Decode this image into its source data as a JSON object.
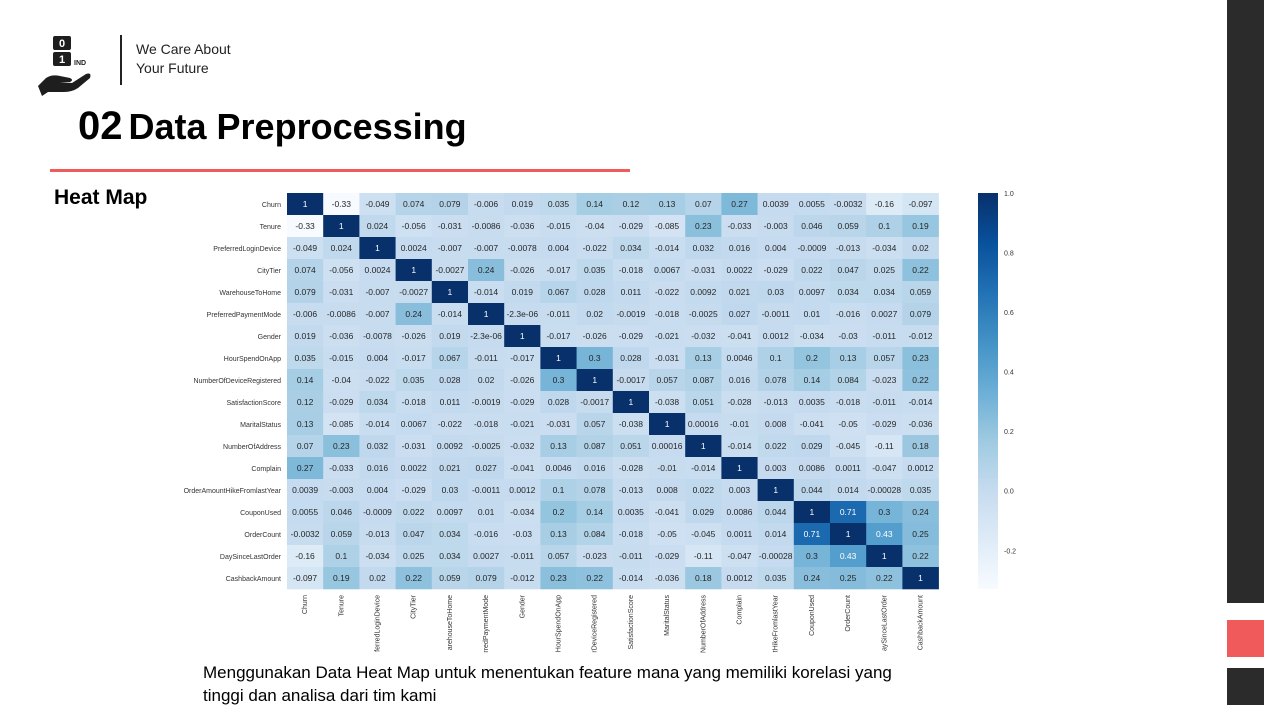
{
  "header": {
    "logo_text": "01 IND",
    "tagline_line1": "We Care About",
    "tagline_line2": "Your Future",
    "title_number": "02",
    "title_text": "Data Preprocessing"
  },
  "section_label": "Heat Map",
  "caption": {
    "line1": "Menggunakan Data Heat Map untuk menentukan feature mana yang memiliki korelasi yang",
    "line2": "tinggi dan analisa dari tim kami"
  },
  "colors": {
    "accent_red": "#f05a5a",
    "sidebar_dark": "#2b2b2b",
    "cmap_low": "#f7fbff",
    "cmap_high": "#08306b"
  },
  "chart_data": {
    "type": "heatmap",
    "title": "",
    "colormap": "Blues",
    "range": [
      -0.33,
      1.0
    ],
    "colorbar_ticks": [
      "1.0",
      "0.8",
      "0.6",
      "0.4",
      "0.2",
      "0.0",
      "-0.2"
    ],
    "labels": [
      "Churn",
      "Tenure",
      "PreferredLoginDevice",
      "CityTier",
      "WarehouseToHome",
      "PreferredPaymentMode",
      "Gender",
      "HourSpendOnApp",
      "NumberOfDeviceRegistered",
      "SatisfactionScore",
      "MaritalStatus",
      "NumberOfAddress",
      "Complain",
      "OrderAmountHikeFromlastYear",
      "CouponUsed",
      "OrderCount",
      "DaySinceLastOrder",
      "CashbackAmount"
    ],
    "x_tick_labels": [
      "Churn",
      "Tenure",
      "ferredLoginDevice",
      "CityTier",
      "arehouseToHome",
      "rredPaymentMode",
      "Gender",
      "HourSpendOnApp",
      "rDeviceRegistered",
      "SatisfactionScore",
      "MaritalStatus",
      "NumberOfAddress",
      "Complain",
      "tHikeFromlastYear",
      "CouponUsed",
      "OrderCount",
      "aySinceLastOrder",
      "CashbackAmount"
    ],
    "values": [
      [
        1,
        -0.33,
        -0.049,
        0.074,
        0.079,
        -0.006,
        0.019,
        0.035,
        0.14,
        0.12,
        0.13,
        0.07,
        0.27,
        0.0039,
        0.0055,
        -0.0032,
        -0.16,
        -0.097
      ],
      [
        -0.33,
        1,
        0.024,
        -0.056,
        -0.031,
        -0.0086,
        -0.036,
        -0.015,
        -0.04,
        -0.029,
        -0.085,
        0.23,
        -0.033,
        -0.003,
        0.046,
        0.059,
        0.1,
        0.19
      ],
      [
        -0.049,
        0.024,
        1,
        0.0024,
        -0.007,
        -0.007,
        -0.0078,
        0.004,
        -0.022,
        0.034,
        -0.014,
        0.032,
        0.016,
        0.004,
        -0.0009,
        -0.013,
        -0.034,
        0.02
      ],
      [
        0.074,
        -0.056,
        0.0024,
        1,
        -0.0027,
        0.24,
        -0.026,
        -0.017,
        0.035,
        -0.018,
        0.0067,
        -0.031,
        0.0022,
        -0.029,
        0.022,
        0.047,
        0.025,
        0.22
      ],
      [
        0.079,
        -0.031,
        -0.007,
        -0.0027,
        1,
        -0.014,
        0.019,
        0.067,
        0.028,
        0.011,
        -0.022,
        0.0092,
        0.021,
        0.03,
        0.0097,
        0.034,
        0.034,
        0.059
      ],
      [
        -0.006,
        -0.0086,
        -0.007,
        0.24,
        -0.014,
        1,
        -2.3e-06,
        -0.011,
        0.02,
        -0.0019,
        -0.018,
        -0.0025,
        0.027,
        -0.0011,
        0.01,
        -0.016,
        0.0027,
        0.079
      ],
      [
        0.019,
        -0.036,
        -0.0078,
        -0.026,
        0.019,
        -2.3e-06,
        1,
        -0.017,
        -0.026,
        -0.029,
        -0.021,
        -0.032,
        -0.041,
        0.0012,
        -0.034,
        -0.03,
        -0.011,
        -0.012
      ],
      [
        0.035,
        -0.015,
        0.004,
        -0.017,
        0.067,
        -0.011,
        -0.017,
        1,
        0.3,
        0.028,
        -0.031,
        0.13,
        0.0046,
        0.1,
        0.2,
        0.13,
        0.057,
        0.23
      ],
      [
        0.14,
        -0.04,
        -0.022,
        0.035,
        0.028,
        0.02,
        -0.026,
        0.3,
        1,
        -0.0017,
        0.057,
        0.087,
        0.016,
        0.078,
        0.14,
        0.084,
        -0.023,
        0.22
      ],
      [
        0.12,
        -0.029,
        0.034,
        -0.018,
        0.011,
        -0.0019,
        -0.029,
        0.028,
        -0.0017,
        1,
        -0.038,
        0.051,
        -0.028,
        -0.013,
        0.0035,
        -0.018,
        -0.011,
        -0.014
      ],
      [
        0.13,
        -0.085,
        -0.014,
        0.0067,
        -0.022,
        -0.018,
        -0.021,
        -0.031,
        0.057,
        -0.038,
        1,
        0.00016,
        -0.01,
        0.008,
        -0.041,
        -0.05,
        -0.029,
        -0.036
      ],
      [
        0.07,
        0.23,
        0.032,
        -0.031,
        0.0092,
        -0.0025,
        -0.032,
        0.13,
        0.087,
        0.051,
        0.00016,
        1,
        -0.014,
        0.022,
        0.029,
        -0.045,
        -0.11,
        0.18
      ],
      [
        0.27,
        -0.033,
        0.016,
        0.0022,
        0.021,
        0.027,
        -0.041,
        0.0046,
        0.016,
        -0.028,
        -0.01,
        -0.014,
        1,
        0.003,
        0.0086,
        0.0011,
        -0.047,
        0.0012
      ],
      [
        0.0039,
        -0.003,
        0.004,
        -0.029,
        0.03,
        -0.0011,
        0.0012,
        0.1,
        0.078,
        -0.013,
        0.008,
        0.022,
        0.003,
        1,
        0.044,
        0.014,
        -0.00028,
        0.035
      ],
      [
        0.0055,
        0.046,
        -0.0009,
        0.022,
        0.0097,
        0.01,
        -0.034,
        0.2,
        0.14,
        0.0035,
        -0.041,
        0.029,
        0.0086,
        0.044,
        1,
        0.71,
        0.3,
        0.24
      ],
      [
        -0.0032,
        0.059,
        -0.013,
        0.047,
        0.034,
        -0.016,
        -0.03,
        0.13,
        0.084,
        -0.018,
        -0.05,
        -0.045,
        0.0011,
        0.014,
        0.71,
        1,
        0.43,
        0.25
      ],
      [
        -0.16,
        0.1,
        -0.034,
        0.025,
        0.034,
        0.0027,
        -0.011,
        0.057,
        -0.023,
        -0.011,
        -0.029,
        -0.11,
        -0.047,
        -0.00028,
        0.3,
        0.43,
        1,
        0.22
      ],
      [
        -0.097,
        0.19,
        0.02,
        0.22,
        0.059,
        0.079,
        -0.012,
        0.23,
        0.22,
        -0.014,
        -0.036,
        0.18,
        0.0012,
        0.035,
        0.24,
        0.25,
        0.22,
        1
      ]
    ],
    "cell_labels": [
      [
        "1",
        "-0.33",
        "-0.049",
        "0.074",
        "0.079",
        "-0.006",
        "0.019",
        "0.035",
        "0.14",
        "0.12",
        "0.13",
        "0.07",
        "0.27",
        "0.0039",
        "0.0055",
        "-0.0032",
        "-0.16",
        "-0.097"
      ],
      [
        "-0.33",
        "1",
        "0.024",
        "-0.056",
        "-0.031",
        "-0.0086",
        "-0.036",
        "-0.015",
        "-0.04",
        "-0.029",
        "-0.085",
        "0.23",
        "-0.033",
        "-0.003",
        "0.046",
        "0.059",
        "0.1",
        "0.19"
      ],
      [
        "-0.049",
        "0.024",
        "1",
        "0.0024",
        "-0.007",
        "-0.007",
        "-0.0078",
        "0.004",
        "-0.022",
        "0.034",
        "-0.014",
        "0.032",
        "0.016",
        "0.004",
        "-0.0009",
        "-0.013",
        "-0.034",
        "0.02"
      ],
      [
        "0.074",
        "-0.056",
        "0.0024",
        "1",
        "-0.0027",
        "0.24",
        "-0.026",
        "-0.017",
        "0.035",
        "-0.018",
        "0.0067",
        "-0.031",
        "0.0022",
        "-0.029",
        "0.022",
        "0.047",
        "0.025",
        "0.22"
      ],
      [
        "0.079",
        "-0.031",
        "-0.007",
        "-0.0027",
        "1",
        "-0.014",
        "0.019",
        "0.067",
        "0.028",
        "0.011",
        "-0.022",
        "0.0092",
        "0.021",
        "0.03",
        "0.0097",
        "0.034",
        "0.034",
        "0.059"
      ],
      [
        "-0.006",
        "-0.0086",
        "-0.007",
        "0.24",
        "-0.014",
        "1",
        "-2.3e-06",
        "-0.011",
        "0.02",
        "-0.0019",
        "-0.018",
        "-0.0025",
        "0.027",
        "-0.0011",
        "0.01",
        "-0.016",
        "0.0027",
        "0.079"
      ],
      [
        "0.019",
        "-0.036",
        "-0.0078",
        "-0.026",
        "0.019",
        "-2.3e-06",
        "1",
        "-0.017",
        "-0.026",
        "-0.029",
        "-0.021",
        "-0.032",
        "-0.041",
        "0.0012",
        "-0.034",
        "-0.03",
        "-0.011",
        "-0.012"
      ],
      [
        "0.035",
        "-0.015",
        "0.004",
        "-0.017",
        "0.067",
        "-0.011",
        "-0.017",
        "1",
        "0.3",
        "0.028",
        "-0.031",
        "0.13",
        "0.0046",
        "0.1",
        "0.2",
        "0.13",
        "0.057",
        "0.23"
      ],
      [
        "0.14",
        "-0.04",
        "-0.022",
        "0.035",
        "0.028",
        "0.02",
        "-0.026",
        "0.3",
        "1",
        "-0.0017",
        "0.057",
        "0.087",
        "0.016",
        "0.078",
        "0.14",
        "0.084",
        "-0.023",
        "0.22"
      ],
      [
        "0.12",
        "-0.029",
        "0.034",
        "-0.018",
        "0.011",
        "-0.0019",
        "-0.029",
        "0.028",
        "-0.0017",
        "1",
        "-0.038",
        "0.051",
        "-0.028",
        "-0.013",
        "0.0035",
        "-0.018",
        "-0.011",
        "-0.014"
      ],
      [
        "0.13",
        "-0.085",
        "-0.014",
        "0.0067",
        "-0.022",
        "-0.018",
        "-0.021",
        "-0.031",
        "0.057",
        "-0.038",
        "1",
        "0.00016",
        "-0.01",
        "0.008",
        "-0.041",
        "-0.05",
        "-0.029",
        "-0.036"
      ],
      [
        "0.07",
        "0.23",
        "0.032",
        "-0.031",
        "0.0092",
        "-0.0025",
        "-0.032",
        "0.13",
        "0.087",
        "0.051",
        "0.00016",
        "1",
        "-0.014",
        "0.022",
        "0.029",
        "-0.045",
        "-0.11",
        "0.18"
      ],
      [
        "0.27",
        "-0.033",
        "0.016",
        "0.0022",
        "0.021",
        "0.027",
        "-0.041",
        "0.0046",
        "0.016",
        "-0.028",
        "-0.01",
        "-0.014",
        "1",
        "0.003",
        "0.0086",
        "0.0011",
        "-0.047",
        "0.0012"
      ],
      [
        "0.0039",
        "-0.003",
        "0.004",
        "-0.029",
        "0.03",
        "-0.0011",
        "0.0012",
        "0.1",
        "0.078",
        "-0.013",
        "0.008",
        "0.022",
        "0.003",
        "1",
        "0.044",
        "0.014",
        "-0.00028",
        "0.035"
      ],
      [
        "0.0055",
        "0.046",
        "-0.0009",
        "0.022",
        "0.0097",
        "0.01",
        "-0.034",
        "0.2",
        "0.14",
        "0.0035",
        "-0.041",
        "0.029",
        "0.0086",
        "0.044",
        "1",
        "0.71",
        "0.3",
        "0.24"
      ],
      [
        "-0.0032",
        "0.059",
        "-0.013",
        "0.047",
        "0.034",
        "-0.016",
        "-0.03",
        "0.13",
        "0.084",
        "-0.018",
        "-0.05",
        "-0.045",
        "0.0011",
        "0.014",
        "0.71",
        "1",
        "0.43",
        "0.25"
      ],
      [
        "-0.16",
        "0.1",
        "-0.034",
        "0.025",
        "0.034",
        "0.0027",
        "-0.011",
        "0.057",
        "-0.023",
        "-0.011",
        "-0.029",
        "-0.11",
        "-0.047",
        "-0.00028",
        "0.3",
        "0.43",
        "1",
        "0.22"
      ],
      [
        "-0.097",
        "0.19",
        "0.02",
        "0.22",
        "0.059",
        "0.079",
        "-0.012",
        "0.23",
        "0.22",
        "-0.014",
        "-0.036",
        "0.18",
        "0.0012",
        "0.035",
        "0.24",
        "0.25",
        "0.22",
        "1"
      ]
    ]
  }
}
